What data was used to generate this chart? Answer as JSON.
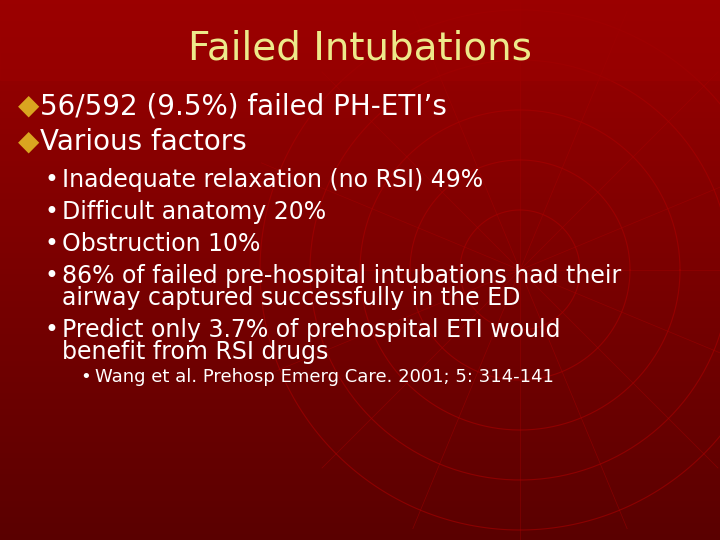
{
  "title": "Failed Intubations",
  "title_color": "#EDE98A",
  "title_fontsize": 28,
  "bg_color": "#8B0000",
  "bullet_marker": "◆",
  "bullet1_text": "56/592 (9.5%) failed PH-ETI’s",
  "bullet2_text": "Various factors",
  "sub_bullets_simple": [
    "Inadequate relaxation (no RSI) 49%",
    "Difficult anatomy 20%",
    "Obstruction 10%"
  ],
  "sub_bullet4_line1": "86% of failed pre-hospital intubations had their",
  "sub_bullet4_line2": "airway captured successfully in the ED",
  "sub_bullet5_line1": "Predict only 3.7% of prehospital ETI would",
  "sub_bullet5_line2": "benefit from RSI drugs",
  "sub_sub_bullet": "Wang et al. Prehosp Emerg Care. 2001; 5: 314-141",
  "text_color": "#FFFFFF",
  "bullet_color": "#DAA520",
  "main_fontsize": 20,
  "sub_fontsize": 17,
  "subsub_fontsize": 13,
  "bg_gradient_top": "#9B0000",
  "bg_gradient_bottom": "#5A0000"
}
